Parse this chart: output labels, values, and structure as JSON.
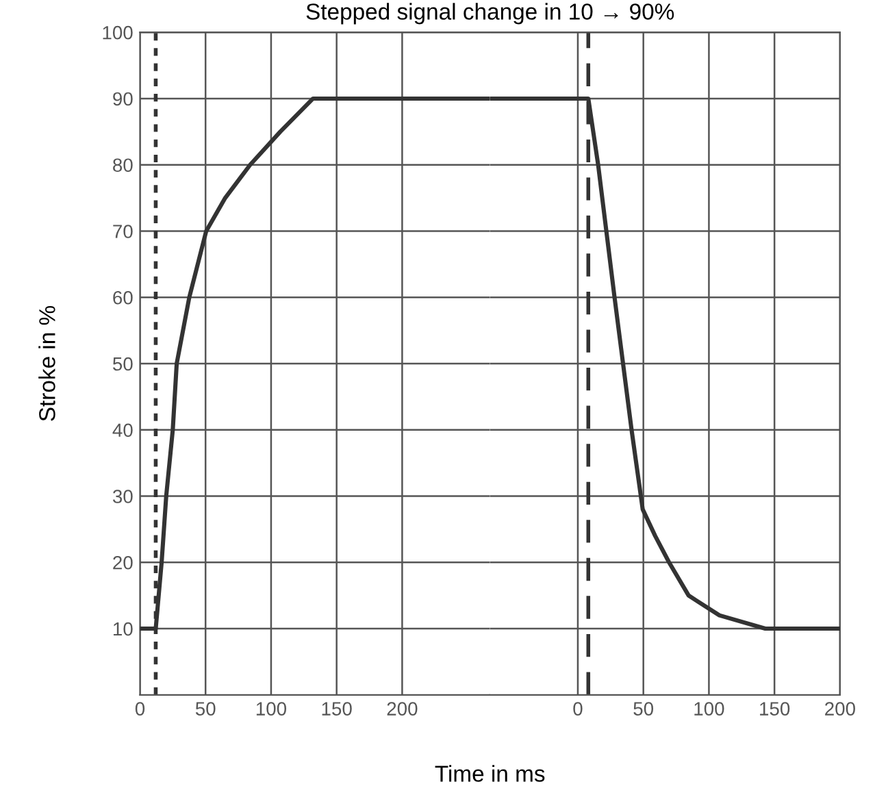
{
  "chart_data": [
    {
      "type": "line",
      "title": "Stepped signal change in 10 → 90%",
      "xlabel": "Time in ms",
      "ylabel": "Stroke in %",
      "series": [
        {
          "color": "#333333",
          "x": [
            0,
            12,
            16.5,
            20,
            25,
            28,
            37.6,
            50.5,
            65,
            84,
            107,
            132,
            267
          ],
          "values": [
            10,
            10,
            20,
            30,
            40,
            50,
            60,
            70,
            75,
            80,
            85,
            90,
            90
          ]
        }
      ],
      "xlim": [
        0,
        267
      ],
      "ylim": [
        0,
        100
      ],
      "xticks": [
        0,
        50,
        100,
        150,
        200
      ],
      "yticks": [
        10,
        20,
        30,
        40,
        50,
        60,
        70,
        80,
        90,
        100
      ],
      "ref_lines": [
        {
          "axis": "x",
          "value": 12,
          "line_style": "dotted",
          "color": "#333333"
        }
      ],
      "grid": true,
      "marker": "none",
      "line_style": "solid"
    },
    {
      "type": "line",
      "series": [
        {
          "color": "#333333",
          "x": [
            -67,
            8,
            15.5,
            28,
            41,
            49.5,
            59,
            69.6,
            84.5,
            108,
            143,
            200
          ],
          "values": [
            90,
            90,
            80,
            60,
            40,
            28,
            24,
            20,
            15,
            12,
            10,
            10
          ]
        }
      ],
      "xlim": [
        -67,
        200
      ],
      "ylim": [
        0,
        100
      ],
      "xticks": [
        0,
        50,
        100,
        150,
        200
      ],
      "yticks": [
        10,
        20,
        30,
        40,
        50,
        60,
        70,
        80,
        90,
        100
      ],
      "tick_labels": "x",
      "ref_lines": [
        {
          "axis": "x",
          "value": 8,
          "line_style": "dashed",
          "color": "#333333"
        }
      ],
      "grid": true,
      "marker": "none",
      "line_style": "solid"
    }
  ]
}
